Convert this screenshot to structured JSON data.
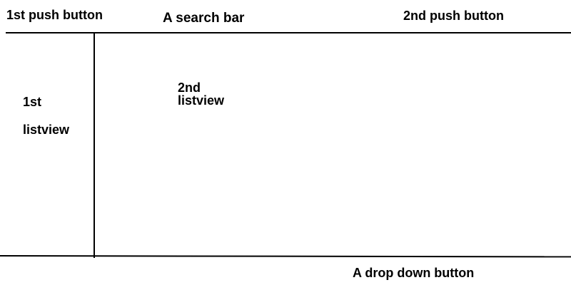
{
  "toolbar": {
    "push_button_1": "1st push button",
    "search_bar": "A search bar",
    "push_button_2": "2nd push button"
  },
  "main": {
    "listview_1": "1st\nlistview",
    "listview_2": "2nd\nlistview"
  },
  "footer": {
    "dropdown_button": "A drop down button"
  }
}
